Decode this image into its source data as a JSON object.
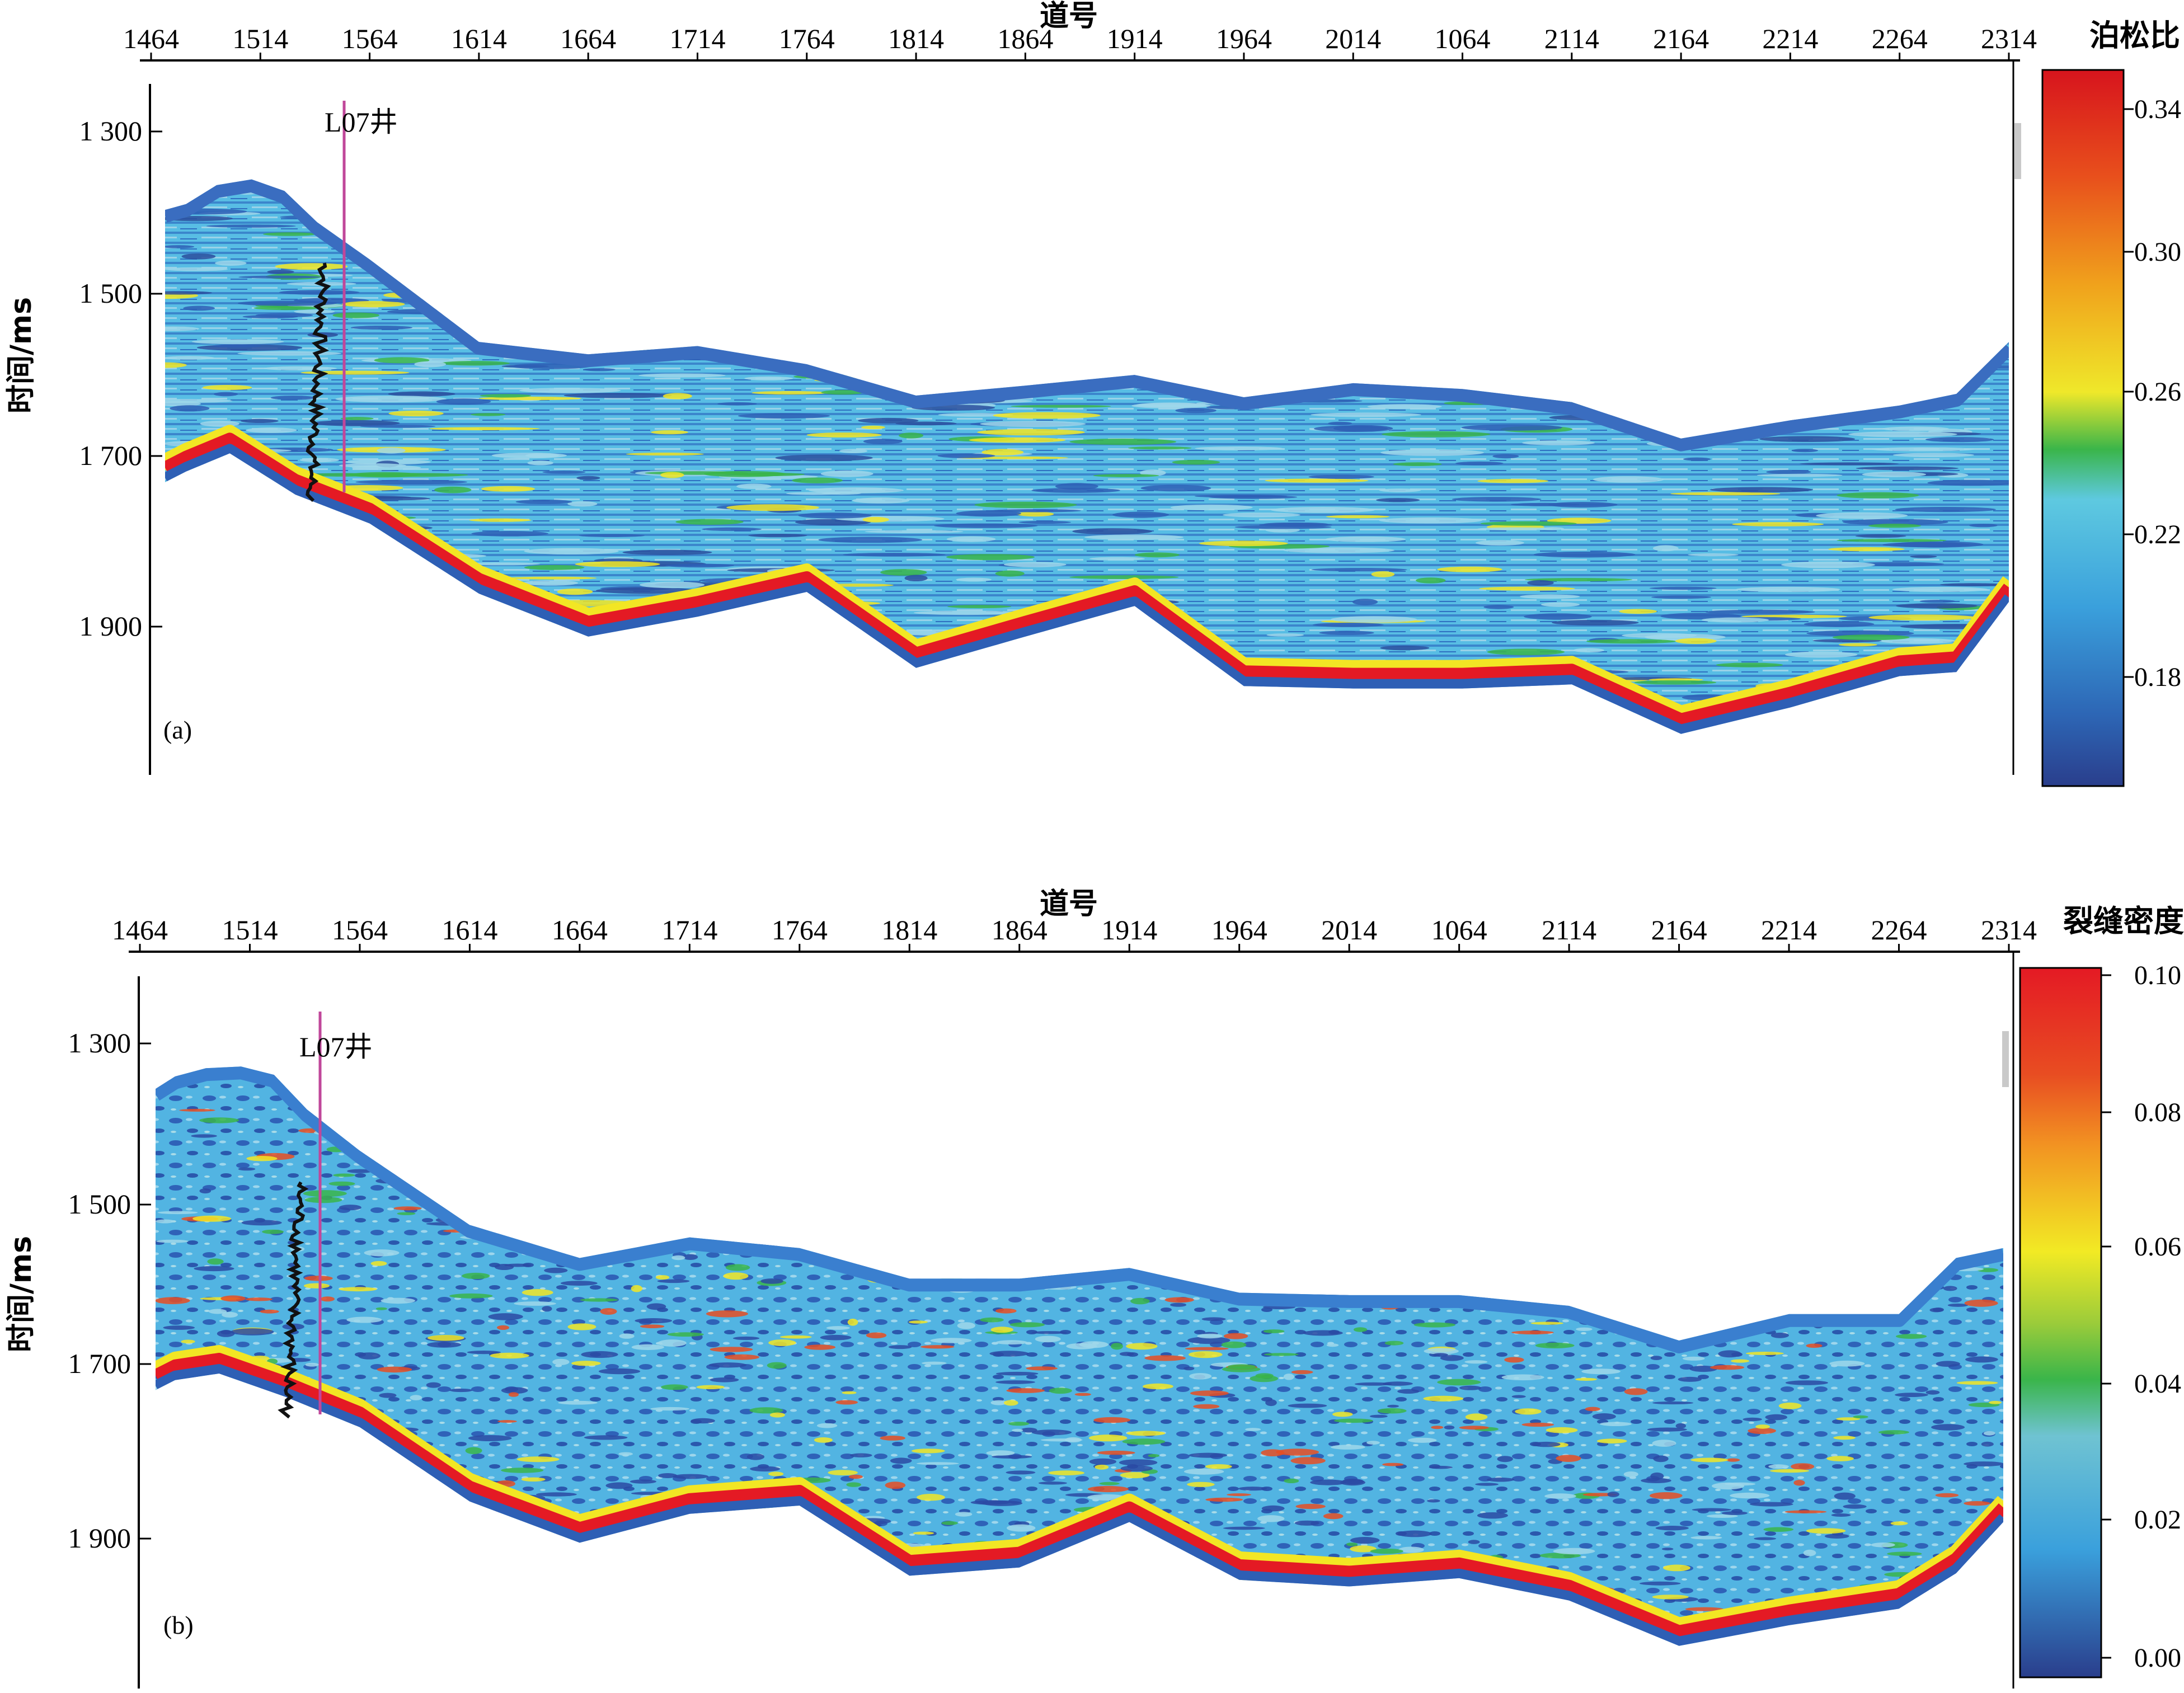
{
  "chart_data": [
    {
      "type": "heatmap",
      "panel_label": "(a)",
      "xlabel": "道号",
      "ylabel": "时间/ms",
      "x_ticks": [
        "1464",
        "1514",
        "1564",
        "1614",
        "1664",
        "1714",
        "1764",
        "1814",
        "1864",
        "1914",
        "1964",
        "2014",
        "1064",
        "2114",
        "2164",
        "2214",
        "2264",
        "2314"
      ],
      "y_ticks": [
        "1 300",
        "1 500",
        "1 700",
        "1 900"
      ],
      "y_tick_values": [
        1300,
        1500,
        1700,
        1900
      ],
      "ylim": [
        1270,
        2100
      ],
      "well_label": "L07井",
      "colorbar": {
        "title": "泊松比",
        "ticks": [
          "0.34",
          "0.30",
          "0.26",
          "0.22",
          "0.18"
        ],
        "tick_values": [
          0.34,
          0.3,
          0.26,
          0.22,
          0.18
        ],
        "range": [
          0.155,
          0.355
        ]
      },
      "top_horizon_ms": [
        [
          1464,
          1395
        ],
        [
          1480,
          1388
        ],
        [
          1494,
          1365
        ],
        [
          1510,
          1358
        ],
        [
          1525,
          1372
        ],
        [
          1540,
          1410
        ],
        [
          1564,
          1455
        ],
        [
          1614,
          1555
        ],
        [
          1664,
          1570
        ],
        [
          1714,
          1560
        ],
        [
          1764,
          1582
        ],
        [
          1814,
          1620
        ],
        [
          1864,
          1608
        ],
        [
          1914,
          1595
        ],
        [
          1964,
          1622
        ],
        [
          2014,
          1605
        ],
        [
          1064,
          1612
        ],
        [
          2114,
          1628
        ],
        [
          2164,
          1672
        ],
        [
          2214,
          1650
        ],
        [
          2264,
          1632
        ],
        [
          2290,
          1618
        ],
        [
          2314,
          1555
        ]
      ],
      "bottom_horizon_ms": [
        [
          1464,
          1725
        ],
        [
          1480,
          1712
        ],
        [
          1500,
          1690
        ],
        [
          1530,
          1740
        ],
        [
          1564,
          1775
        ],
        [
          1614,
          1860
        ],
        [
          1664,
          1912
        ],
        [
          1714,
          1888
        ],
        [
          1764,
          1858
        ],
        [
          1814,
          1950
        ],
        [
          1864,
          1912
        ],
        [
          1914,
          1875
        ],
        [
          1964,
          1972
        ],
        [
          2014,
          1975
        ],
        [
          1064,
          1975
        ],
        [
          2114,
          1970
        ],
        [
          2164,
          2030
        ],
        [
          2214,
          1998
        ],
        [
          2264,
          1960
        ],
        [
          2290,
          1955
        ],
        [
          2314,
          1870
        ]
      ]
    },
    {
      "type": "heatmap",
      "panel_label": "(b)",
      "xlabel": "道号",
      "ylabel": "时间/ms",
      "x_ticks": [
        "1464",
        "1514",
        "1564",
        "1614",
        "1664",
        "1714",
        "1764",
        "1814",
        "1864",
        "1914",
        "1964",
        "2014",
        "1064",
        "2114",
        "2164",
        "2214",
        "2264",
        "2314"
      ],
      "y_ticks": [
        "1 300",
        "1 500",
        "1 700",
        "1 900"
      ],
      "y_tick_values": [
        1300,
        1500,
        1700,
        1900
      ],
      "ylim": [
        1270,
        2100
      ],
      "well_label": "L07井",
      "colorbar": {
        "title": "裂缝密度",
        "ticks": [
          "0.10",
          "0.08",
          "0.06",
          "0.04",
          "0.02",
          "0.00"
        ],
        "tick_values": [
          0.1,
          0.08,
          0.06,
          0.04,
          0.02,
          0.0
        ],
        "range": [
          0.0,
          0.1
        ]
      },
      "top_horizon_ms": [
        [
          1464,
          1355
        ],
        [
          1480,
          1340
        ],
        [
          1494,
          1330
        ],
        [
          1510,
          1328
        ],
        [
          1525,
          1338
        ],
        [
          1540,
          1380
        ],
        [
          1564,
          1430
        ],
        [
          1614,
          1520
        ],
        [
          1664,
          1560
        ],
        [
          1714,
          1535
        ],
        [
          1764,
          1548
        ],
        [
          1814,
          1585
        ],
        [
          1864,
          1585
        ],
        [
          1914,
          1572
        ],
        [
          1964,
          1602
        ],
        [
          2014,
          1605
        ],
        [
          1064,
          1605
        ],
        [
          2114,
          1618
        ],
        [
          2164,
          1660
        ],
        [
          2214,
          1628
        ],
        [
          2264,
          1628
        ],
        [
          2290,
          1560
        ],
        [
          2314,
          1548
        ]
      ],
      "bottom_horizon_ms": [
        [
          1464,
          1720
        ],
        [
          1480,
          1708
        ],
        [
          1500,
          1700
        ],
        [
          1530,
          1728
        ],
        [
          1564,
          1765
        ],
        [
          1614,
          1855
        ],
        [
          1664,
          1905
        ],
        [
          1714,
          1870
        ],
        [
          1764,
          1860
        ],
        [
          1814,
          1945
        ],
        [
          1864,
          1935
        ],
        [
          1914,
          1880
        ],
        [
          1964,
          1950
        ],
        [
          2014,
          1958
        ],
        [
          1064,
          1948
        ],
        [
          2114,
          1975
        ],
        [
          2164,
          2030
        ],
        [
          2214,
          2005
        ],
        [
          2264,
          1985
        ],
        [
          2290,
          1942
        ],
        [
          2314,
          1880
        ]
      ]
    }
  ]
}
